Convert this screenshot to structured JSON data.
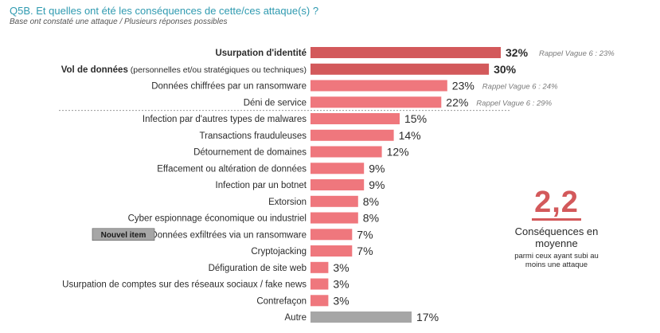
{
  "header": {
    "title": "Q5B. Et quelles ont été les conséquences de cette/ces attaque(s) ?",
    "subtitle": "Base ont constaté une attaque  / Plusieurs réponses possibles"
  },
  "badge": {
    "label": "Nouvel item"
  },
  "average": {
    "value": "2,2",
    "label": "Conséquences en moyenne",
    "note": "parmi ceux ayant subi au moins une attaque"
  },
  "colors": {
    "top_bar": "#d3595b",
    "bar": "#ef777d",
    "other_bar": "#a6a6a6",
    "divider": "#9a9a9a",
    "badge_bg": "#a6a6a6",
    "title": "#2f9ab0"
  },
  "chart_data": {
    "type": "bar",
    "orientation": "horizontal",
    "unit": "%",
    "xlim": [
      0,
      32
    ],
    "categories": [
      "Usurpation d'identité",
      "Vol de données (personnelles et/ou stratégiques ou techniques)",
      "Données chiffrées par un ransomware",
      "Déni de service",
      "Infection par d'autres types de malwares",
      "Transactions frauduleuses",
      "Détournement de domaines",
      "Effacement ou altération de données",
      "Infection par un botnet",
      "Extorsion",
      "Cyber espionnage économique ou industriel",
      "Données exfiltrées via un ransomware",
      "Cryptojacking",
      "Défiguration de site web",
      "Usurpation de comptes sur des réseaux sociaux / fake news",
      "Contrefaçon",
      "Autre"
    ],
    "bold_parts": [
      "Usurpation d'identité",
      "Vol de données",
      "",
      "",
      "",
      "",
      "",
      "",
      "",
      "",
      "",
      "",
      "",
      "",
      "",
      "",
      ""
    ],
    "plain_parts": [
      "",
      " (personnelles et/ou stratégiques ou techniques)",
      "Données chiffrées par un ransomware",
      "Déni de service",
      "Infection par d'autres types de malwares",
      "Transactions frauduleuses",
      "Détournement de domaines",
      "Effacement ou altération de données",
      "Infection par un botnet",
      "Extorsion",
      "Cyber espionnage économique ou industriel",
      "Données exfiltrées via un ransomware",
      "Cryptojacking",
      "Défiguration de site web",
      "Usurpation de comptes sur des réseaux sociaux / fake news",
      "Contrefaçon",
      "Autre"
    ],
    "values": [
      32,
      30,
      23,
      22,
      15,
      14,
      12,
      9,
      9,
      8,
      8,
      7,
      7,
      3,
      3,
      3,
      17
    ],
    "value_labels": [
      "32%",
      "30%",
      "23%",
      "22%",
      "15%",
      "14%",
      "12%",
      "9%",
      "9%",
      "8%",
      "8%",
      "7%",
      "7%",
      "3%",
      "3%",
      "3%",
      "17%"
    ],
    "emphasis": [
      "top",
      "top",
      "",
      "",
      "",
      "",
      "",
      "",
      "",
      "",
      "",
      "",
      "",
      "",
      "",
      "",
      "other"
    ],
    "recall": [
      "Rappel Vague 6 : 23%",
      "",
      "Rappel Vague 6 : 24%",
      "Rappel Vague 6 : 29%",
      "",
      "",
      "",
      "",
      "",
      "",
      "",
      "",
      "",
      "",
      "",
      "",
      ""
    ],
    "new_item": [
      false,
      false,
      false,
      false,
      false,
      false,
      false,
      false,
      false,
      false,
      false,
      true,
      false,
      false,
      false,
      false,
      false
    ],
    "divider_after_index": 3
  }
}
